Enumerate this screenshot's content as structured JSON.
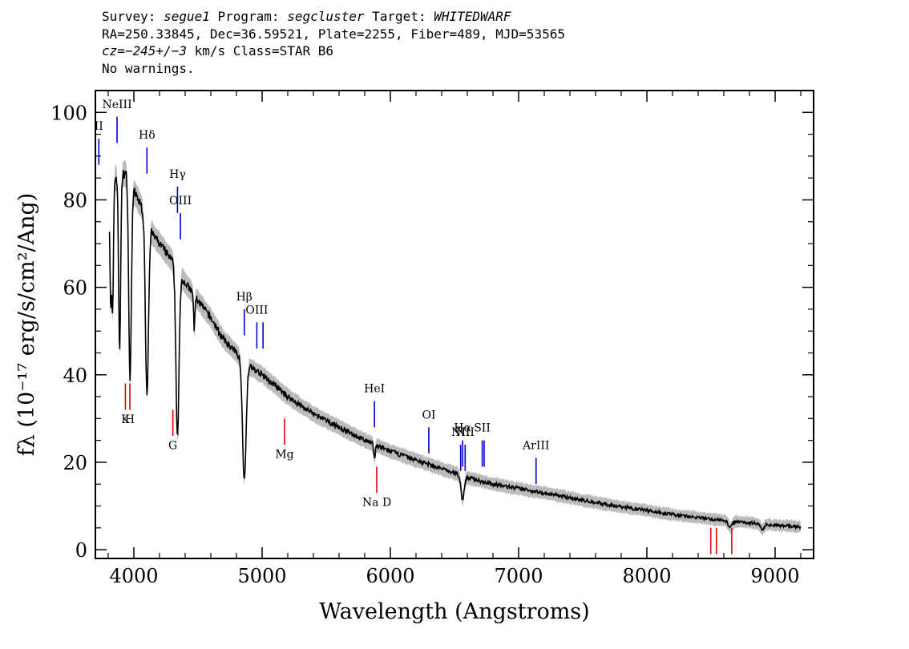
{
  "header": {
    "line1": {
      "survey_label": "Survey: ",
      "survey": "segue1",
      "program_label": " Program: ",
      "program": "segcluster",
      "target_label": " Target: ",
      "target": "WHITEDWARF"
    },
    "line2": "RA=250.33845, Dec=36.59521, Plate=2255, Fiber=489, MJD=53565",
    "line3": {
      "cz": "cz=−245+/−3",
      "rest": " km/s Class=STAR B6"
    },
    "line4": "No warnings."
  },
  "colors": {
    "spectrum": "#000000",
    "error_band": "#bbbbbb",
    "emission": "#0000cc",
    "absorption": "#dd0000"
  },
  "chart_data": {
    "type": "line",
    "xlabel": "Wavelength (Angstroms)",
    "ylabel": "fλ (10⁻¹⁷ erg/s/cm²/Ang)",
    "xlim": [
      3700,
      9300
    ],
    "ylim": [
      -2,
      105
    ],
    "xticks": [
      "4000",
      "5000",
      "6000",
      "7000",
      "8000",
      "9000"
    ],
    "yticks": [
      "0",
      "20",
      "40",
      "60",
      "80",
      "100"
    ],
    "continuum": {
      "x": [
        3810,
        3850,
        3900,
        3950,
        4000,
        4050,
        4100,
        4150,
        4200,
        4300,
        4400,
        4500,
        4600,
        4700,
        4800,
        4900,
        5000,
        5200,
        5400,
        5600,
        5800,
        6000,
        6200,
        6400,
        6600,
        6800,
        7000,
        7200,
        7500,
        7800,
        8000,
        8200,
        8500,
        8800,
        9000,
        9200
      ],
      "y": [
        80,
        85,
        86,
        86,
        82,
        79,
        76,
        72,
        70,
        66,
        61,
        57,
        53,
        48,
        45,
        42,
        40,
        35,
        31,
        28,
        25,
        22.5,
        20.5,
        18.5,
        16.5,
        15,
        14,
        13,
        11.3,
        9.8,
        9,
        8,
        7,
        6.2,
        5.6,
        5.2
      ]
    },
    "absorption_features": [
      {
        "center": 3820,
        "depth": 25,
        "width": 6
      },
      {
        "center": 3835,
        "depth": 28,
        "width": 6
      },
      {
        "center": 3889,
        "depth": 40,
        "width": 8
      },
      {
        "center": 3970,
        "depth": 46,
        "width": 10
      },
      {
        "center": 4102,
        "depth": 40,
        "width": 12
      },
      {
        "center": 4340,
        "depth": 38,
        "width": 12
      },
      {
        "center": 4471,
        "depth": 8,
        "width": 5
      },
      {
        "center": 4861,
        "depth": 27,
        "width": 14
      },
      {
        "center": 5876,
        "depth": 3,
        "width": 6
      },
      {
        "center": 6563,
        "depth": 5.5,
        "width": 12
      },
      {
        "center": 8650,
        "depth": 1.5,
        "width": 15
      },
      {
        "center": 8900,
        "depth": 1.2,
        "width": 15
      }
    ],
    "emission_lines": [
      {
        "label": "II",
        "x": 3727,
        "y0": 88,
        "y1": 94,
        "label_y": 96
      },
      {
        "label": "NeIII",
        "x": 3869,
        "y0": 93,
        "y1": 99,
        "label_y": 101
      },
      {
        "label": "Hδ",
        "x": 4102,
        "y0": 86,
        "y1": 92,
        "label_y": 94
      },
      {
        "label": "Hγ",
        "x": 4340,
        "y0": 77,
        "y1": 83,
        "label_y": 85
      },
      {
        "label": "OIII",
        "x": 4363,
        "y0": 71,
        "y1": 77,
        "label_y": 79
      },
      {
        "label": "Hβ",
        "x": 4861,
        "y0": 49,
        "y1": 55,
        "label_y": 57
      },
      {
        "label": "OIII",
        "x": 4959,
        "y0": 46,
        "y1": 52,
        "label_y": 54
      },
      {
        "label": "",
        "x": 5007,
        "y0": 46,
        "y1": 52,
        "label_y": 54
      },
      {
        "label": "HeI",
        "x": 5876,
        "y0": 28,
        "y1": 34,
        "label_y": 36
      },
      {
        "label": "OI",
        "x": 6300,
        "y0": 22,
        "y1": 28,
        "label_y": 30
      },
      {
        "label": "NII",
        "x": 6548,
        "y0": 18,
        "y1": 24,
        "label_y": 26
      },
      {
        "label": "Hα",
        "x": 6563,
        "y0": 19,
        "y1": 25,
        "label_y": 27
      },
      {
        "label": "NII",
        "x": 6583,
        "y0": 18,
        "y1": 24,
        "label_y": 26
      },
      {
        "label": "SII",
        "x": 6716,
        "y0": 19,
        "y1": 25,
        "label_y": 27
      },
      {
        "label": "",
        "x": 6731,
        "y0": 19,
        "y1": 25,
        "label_y": 27
      },
      {
        "label": "ArIII",
        "x": 7136,
        "y0": 15,
        "y1": 21,
        "label_y": 23
      }
    ],
    "absorption_lines": [
      {
        "label": "K",
        "x": 3934,
        "y0": 32,
        "y1": 38,
        "label_y": 29
      },
      {
        "label": "H",
        "x": 3969,
        "y0": 32,
        "y1": 38,
        "label_y": 29
      },
      {
        "label": "G",
        "x": 4304,
        "y0": 26,
        "y1": 32,
        "label_y": 23
      },
      {
        "label": "Mg",
        "x": 5175,
        "y0": 24,
        "y1": 30,
        "label_y": 21
      },
      {
        "label": "Na D",
        "x": 5894,
        "y0": 13,
        "y1": 19,
        "label_y": 10
      },
      {
        "label": "",
        "x": 8498,
        "y0": -1,
        "y1": 5,
        "label_y": -3
      },
      {
        "label": "",
        "x": 8542,
        "y0": -1,
        "y1": 5,
        "label_y": -3
      },
      {
        "label": "",
        "x": 8662,
        "y0": -1,
        "y1": 5,
        "label_y": -3
      }
    ]
  }
}
